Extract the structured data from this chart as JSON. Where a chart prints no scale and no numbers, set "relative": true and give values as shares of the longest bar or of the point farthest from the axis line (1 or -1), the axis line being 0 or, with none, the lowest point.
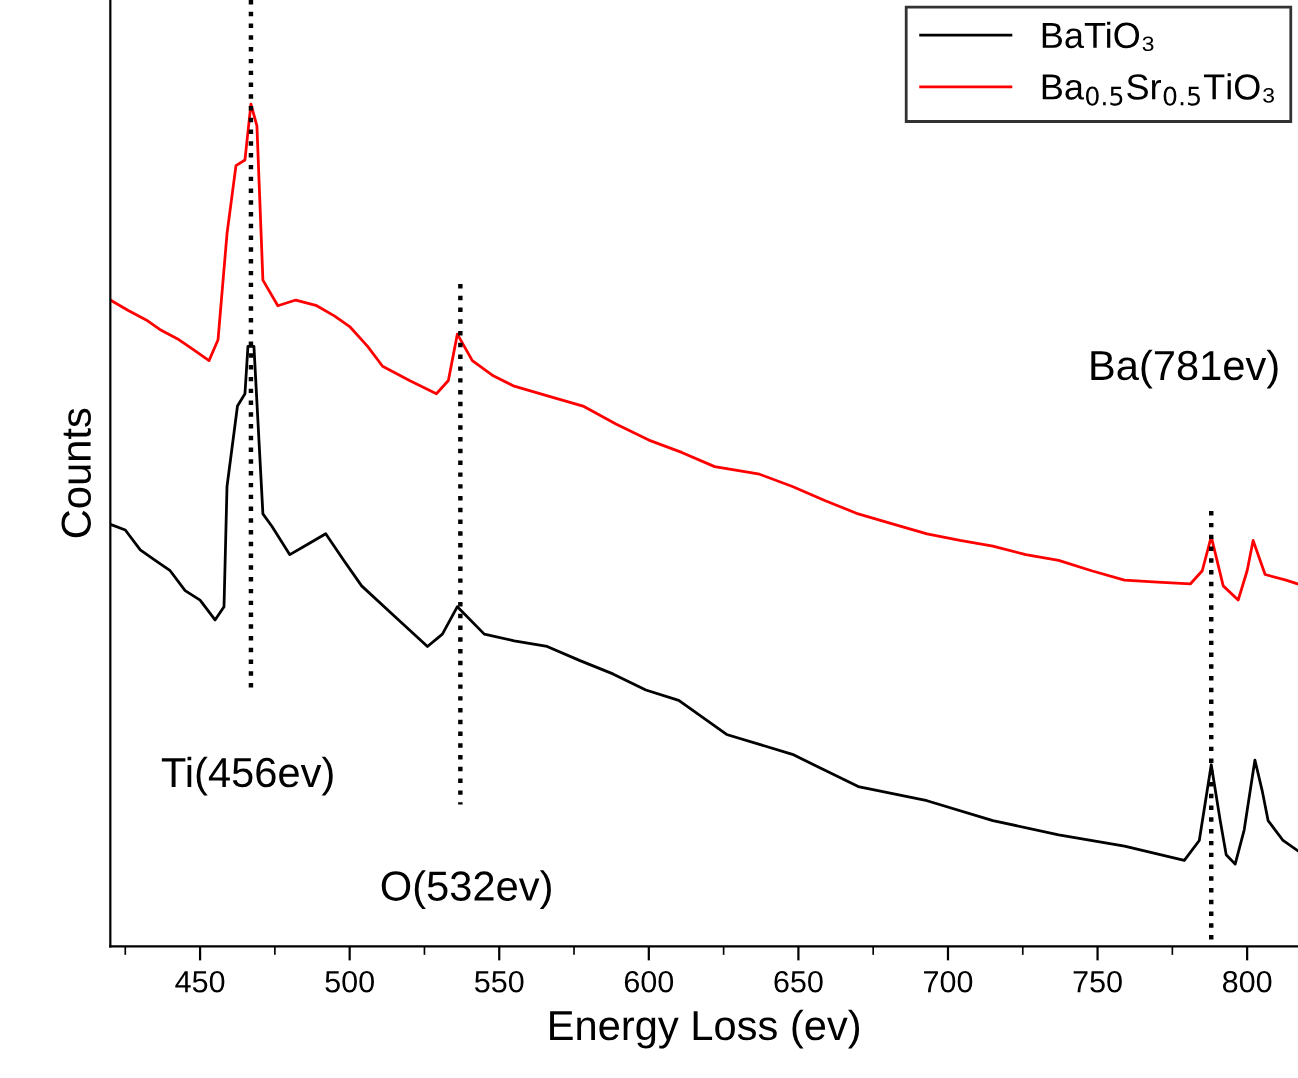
{
  "chart_data": {
    "type": "line",
    "relative": true,
    "xlabel": "Energy Loss (ev)",
    "ylabel": "Counts",
    "xlim": [
      420,
      817
    ],
    "xticks": [
      {
        "value": 425,
        "label": null
      },
      450,
      {
        "value": 475,
        "label": null
      },
      500,
      {
        "value": 525,
        "label": null
      },
      550,
      {
        "value": 575,
        "label": null
      },
      600,
      {
        "value": 625,
        "label": null
      },
      650,
      {
        "value": 675,
        "label": null
      },
      700,
      {
        "value": 725,
        "label": null
      },
      750,
      {
        "value": 775,
        "label": null
      },
      800
    ],
    "tick_labels": "x",
    "grid": false,
    "legend": "top right",
    "series": [
      {
        "name": "BaTiO₃",
        "color": "#000000",
        "x": [
          420,
          425,
          430,
          435,
          440,
          445,
          450,
          455,
          458,
          459,
          462.5,
          465,
          466,
          468,
          471,
          474,
          480,
          486,
          492,
          498,
          504,
          515,
          526,
          531,
          536,
          545,
          555,
          566,
          577,
          588,
          599,
          610,
          626,
          648,
          670,
          693,
          715,
          737,
          759,
          779,
          784,
          788,
          791,
          793,
          796,
          799,
          802.6,
          805,
          807,
          812,
          817
        ],
        "values": [
          0.446,
          0.44,
          0.419,
          0.408,
          0.397,
          0.376,
          0.366,
          0.345,
          0.359,
          0.486,
          0.571,
          0.584,
          0.634,
          0.634,
          0.457,
          0.444,
          0.414,
          0.425,
          0.436,
          0.408,
          0.381,
          0.349,
          0.317,
          0.33,
          0.359,
          0.33,
          0.323,
          0.317,
          0.302,
          0.288,
          0.271,
          0.26,
          0.224,
          0.203,
          0.169,
          0.154,
          0.133,
          0.118,
          0.106,
          0.091,
          0.112,
          0.192,
          0.133,
          0.097,
          0.087,
          0.123,
          0.197,
          0.165,
          0.133,
          0.112,
          0.101
        ]
      },
      {
        "name": "Ba$_{0.5}$Sr$_{0.5}$TiO₃",
        "color": "#ff0000",
        "x": [
          420,
          426,
          432,
          437,
          443,
          448,
          453,
          456,
          459,
          462,
          465,
          467,
          469,
          471,
          476,
          482,
          489,
          495,
          500,
          506,
          511,
          520,
          529,
          533,
          536,
          541,
          548,
          555,
          567,
          578,
          589,
          600,
          611,
          622,
          637,
          648,
          659,
          670,
          682,
          693,
          704,
          715,
          726,
          737,
          748,
          759,
          770,
          781,
          785,
          788,
          792,
          797,
          800,
          802,
          806,
          813,
          817
        ],
        "values": [
          0.683,
          0.672,
          0.662,
          0.651,
          0.641,
          0.63,
          0.619,
          0.641,
          0.753,
          0.825,
          0.831,
          0.89,
          0.867,
          0.704,
          0.677,
          0.683,
          0.677,
          0.666,
          0.655,
          0.634,
          0.613,
          0.598,
          0.584,
          0.598,
          0.647,
          0.619,
          0.603,
          0.592,
          0.581,
          0.571,
          0.552,
          0.535,
          0.522,
          0.507,
          0.499,
          0.486,
          0.471,
          0.457,
          0.446,
          0.436,
          0.429,
          0.423,
          0.414,
          0.408,
          0.397,
          0.387,
          0.385,
          0.383,
          0.397,
          0.433,
          0.381,
          0.366,
          0.397,
          0.429,
          0.393,
          0.387,
          0.383
        ]
      },
      {
        "color": "#000000",
        "line_style": "dotted",
        "x": [
          467,
          467
        ],
        "values": [
          1.0,
          0.27
        ]
      },
      {
        "color": "#000000",
        "line_style": "dotted",
        "x": [
          537,
          537
        ],
        "values": [
          0.7,
          0.15
        ]
      },
      {
        "color": "#000000",
        "line_style": "dotted",
        "x": [
          788,
          788
        ],
        "values": [
          0.46,
          0.0
        ]
      }
    ],
    "annotations": [
      "Ti(456ev)",
      "O(532ev)",
      "Ba(781ev)"
    ]
  }
}
